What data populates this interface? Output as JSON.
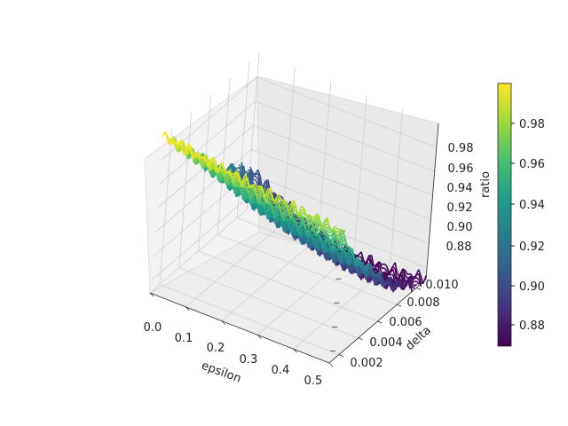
{
  "chart_data": {
    "type": "surface3d",
    "title": "",
    "colormap": "viridis",
    "colormap_stops": [
      "#440154",
      "#46327e",
      "#365c8d",
      "#277f8e",
      "#1fa187",
      "#4ac16d",
      "#a0da39",
      "#fde725"
    ],
    "grid": true,
    "xlabel": "epsilon",
    "ylabel": "delta",
    "zlabel": "ratio",
    "xlim": [
      0.0,
      0.5
    ],
    "ylim": [
      0.001,
      0.011
    ],
    "zlim": [
      0.87,
      1.0
    ],
    "x_ticks": [
      "0.0",
      "0.1",
      "0.2",
      "0.3",
      "0.4",
      "0.5"
    ],
    "y_ticks": [
      "0.002",
      "0.004",
      "0.006",
      "0.008",
      "0.010"
    ],
    "z_ticks": [
      "0.88",
      "0.90",
      "0.92",
      "0.94",
      "0.96",
      "0.98"
    ],
    "colorbar": {
      "range": [
        0.868,
        1.0
      ],
      "ticks": [
        "0.88",
        "0.90",
        "0.92",
        "0.94",
        "0.96",
        "0.98"
      ]
    },
    "x": [
      0.0,
      0.05,
      0.1,
      0.15,
      0.2,
      0.25,
      0.3,
      0.35,
      0.4,
      0.45,
      0.5
    ],
    "y": [
      0.001,
      0.002,
      0.003,
      0.004,
      0.005,
      0.006,
      0.007,
      0.008,
      0.009,
      0.01,
      0.011
    ],
    "z": [
      [
        1.0,
        0.998,
        0.996,
        0.994,
        0.992,
        0.99,
        0.988,
        0.986,
        0.984,
        0.982,
        0.98
      ],
      [
        0.99,
        0.987,
        0.984,
        0.981,
        0.978,
        0.975,
        0.972,
        0.97,
        0.968,
        0.966,
        0.964
      ],
      [
        0.978,
        0.974,
        0.97,
        0.966,
        0.962,
        0.958,
        0.955,
        0.952,
        0.95,
        0.948,
        0.946
      ],
      [
        0.966,
        0.961,
        0.956,
        0.951,
        0.946,
        0.942,
        0.939,
        0.936,
        0.934,
        0.932,
        0.93
      ],
      [
        0.955,
        0.949,
        0.943,
        0.937,
        0.932,
        0.928,
        0.925,
        0.922,
        0.92,
        0.919,
        0.918
      ],
      [
        0.945,
        0.938,
        0.931,
        0.925,
        0.92,
        0.916,
        0.912,
        0.909,
        0.907,
        0.906,
        0.905
      ],
      [
        0.935,
        0.927,
        0.92,
        0.914,
        0.908,
        0.904,
        0.9,
        0.897,
        0.895,
        0.894,
        0.894
      ],
      [
        0.926,
        0.918,
        0.91,
        0.903,
        0.897,
        0.893,
        0.889,
        0.886,
        0.884,
        0.884,
        0.885
      ],
      [
        0.918,
        0.909,
        0.901,
        0.894,
        0.888,
        0.883,
        0.879,
        0.876,
        0.874,
        0.875,
        0.877
      ],
      [
        0.911,
        0.902,
        0.893,
        0.886,
        0.88,
        0.875,
        0.871,
        0.87,
        0.868,
        0.87,
        0.873
      ],
      [
        0.905,
        0.896,
        0.887,
        0.88,
        0.874,
        0.87,
        0.868,
        0.868,
        0.868,
        0.869,
        0.872
      ]
    ]
  }
}
